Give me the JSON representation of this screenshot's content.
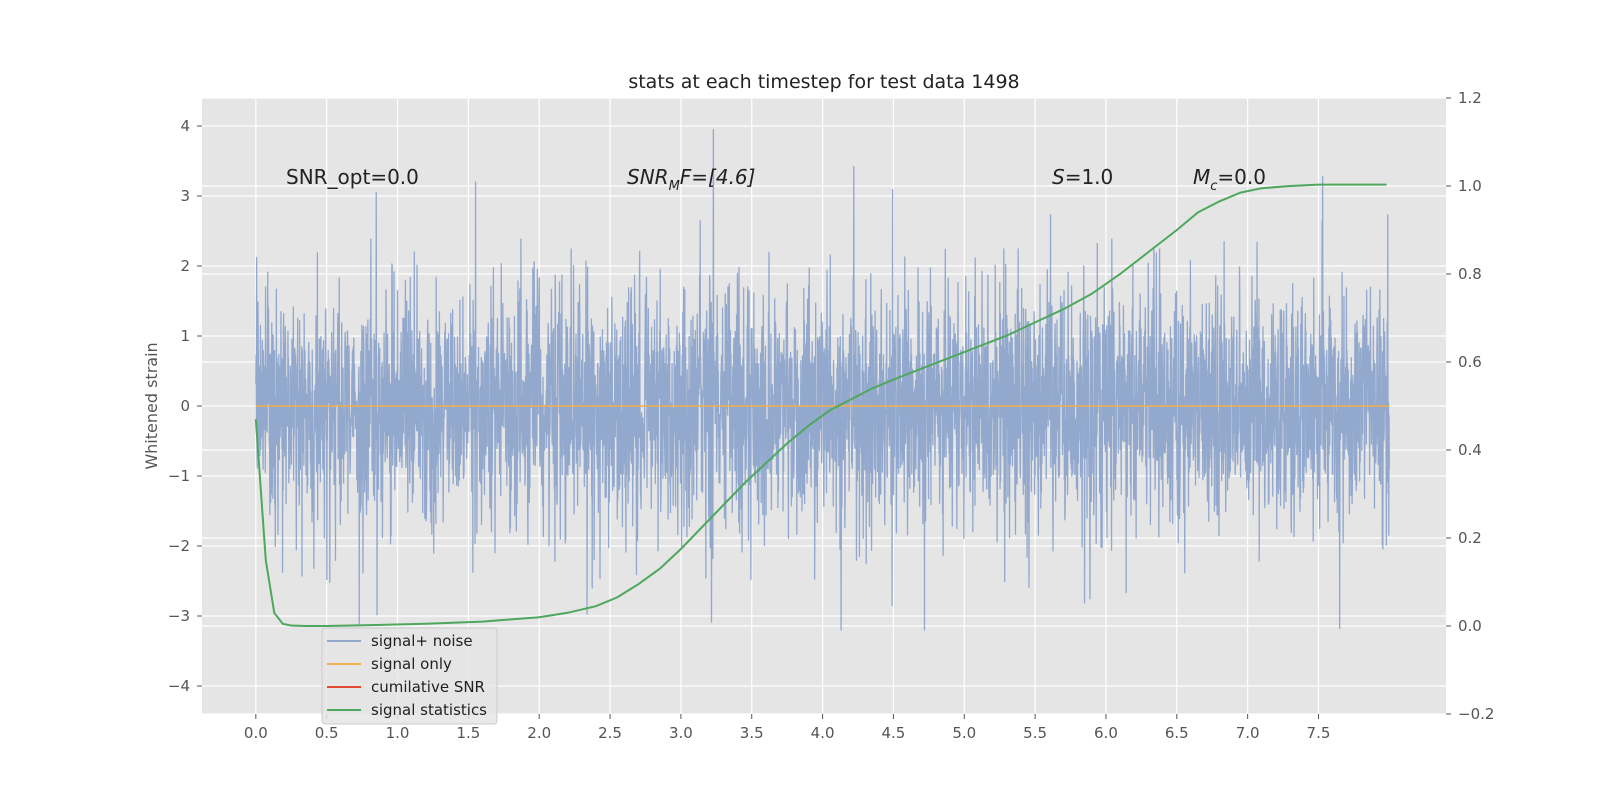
{
  "chart_data": {
    "type": "line",
    "title": "stats at each timestep for test data 1498",
    "ylabel": "Whitened strain",
    "xlabel": "",
    "xlim": [
      -0.38,
      8.4
    ],
    "ylim": [
      -4.4,
      4.4
    ],
    "y2lim": [
      -0.2,
      1.2
    ],
    "x_ticks": [
      "0.0",
      "0.5",
      "1.0",
      "1.5",
      "2.0",
      "2.5",
      "3.0",
      "3.5",
      "4.0",
      "4.5",
      "5.0",
      "5.5",
      "6.0",
      "6.5",
      "7.0",
      "7.5"
    ],
    "x_tick_values": [
      0,
      0.5,
      1,
      1.5,
      2,
      2.5,
      3,
      3.5,
      4,
      4.5,
      5,
      5.5,
      6,
      6.5,
      7,
      7.5
    ],
    "y_ticks": [
      "4",
      "3",
      "2",
      "1",
      "0",
      "−1",
      "−2",
      "−3",
      "−4"
    ],
    "y_tick_values": [
      4,
      3,
      2,
      1,
      0,
      -1,
      -2,
      -3,
      -4
    ],
    "y2_ticks": [
      "1.2",
      "1.0",
      "0.8",
      "0.6",
      "0.4",
      "0.2",
      "0.0",
      "−0.2"
    ],
    "y2_tick_values": [
      1.2,
      1.0,
      0.8,
      0.6,
      0.4,
      0.2,
      0.0,
      -0.2
    ],
    "grid": true,
    "legend_position": "lower-left",
    "annotations": {
      "snr_opt": "SNR_opt=0.0",
      "snr_mf_main": "SNR",
      "snr_mf_sub": "M",
      "snr_mf_rest": "F=[4.6]",
      "s_var": "S",
      "s_rest": "=1.0",
      "mc_var": "M",
      "mc_sub": "c",
      "mc_rest": "=0.0"
    },
    "series": [
      {
        "name": "signal+ noise",
        "color": "#92a8cd",
        "axis": "left",
        "x_range": [
          0,
          8
        ],
        "mean": 0,
        "std": 0.85,
        "approx_max": 3.95,
        "approx_min": -3.2,
        "note_peaks": [
          [
            3.23,
            3.95
          ],
          [
            4.22,
            3.42
          ],
          [
            1.55,
            3.2
          ],
          [
            7.53,
            3.28
          ],
          [
            0.85,
            3.05
          ],
          [
            4.13,
            -3.2
          ],
          [
            7.65,
            -3.18
          ],
          [
            0.73,
            -3.12
          ]
        ]
      },
      {
        "name": "signal only",
        "color": "#f0b050",
        "axis": "left",
        "x": [
          0,
          8
        ],
        "y": [
          0,
          0
        ]
      },
      {
        "name": "cumilative SNR",
        "color": "#e24a33",
        "axis": "right",
        "x": [],
        "y": []
      },
      {
        "name": "signal statistics",
        "color": "#4fa75e",
        "axis": "right",
        "x": [
          0.0,
          0.07,
          0.13,
          0.19,
          0.25,
          0.35,
          0.5,
          0.8,
          1.2,
          1.6,
          2.0,
          2.2,
          2.4,
          2.55,
          2.7,
          2.85,
          3.0,
          3.15,
          3.3,
          3.45,
          3.6,
          3.75,
          3.9,
          4.05,
          4.2,
          4.35,
          4.5,
          4.7,
          4.9,
          5.1,
          5.3,
          5.5,
          5.7,
          5.9,
          6.1,
          6.3,
          6.5,
          6.65,
          6.8,
          6.95,
          7.1,
          7.3,
          7.5,
          7.7,
          7.98
        ],
        "y": [
          0.47,
          0.15,
          0.03,
          0.005,
          0.001,
          0.0,
          0.0,
          0.002,
          0.005,
          0.01,
          0.02,
          0.03,
          0.045,
          0.065,
          0.095,
          0.13,
          0.175,
          0.225,
          0.275,
          0.325,
          0.37,
          0.415,
          0.455,
          0.49,
          0.515,
          0.54,
          0.56,
          0.585,
          0.61,
          0.635,
          0.66,
          0.69,
          0.72,
          0.755,
          0.8,
          0.85,
          0.9,
          0.94,
          0.965,
          0.985,
          0.995,
          1.0,
          1.003,
          1.003,
          1.003
        ]
      }
    ]
  }
}
